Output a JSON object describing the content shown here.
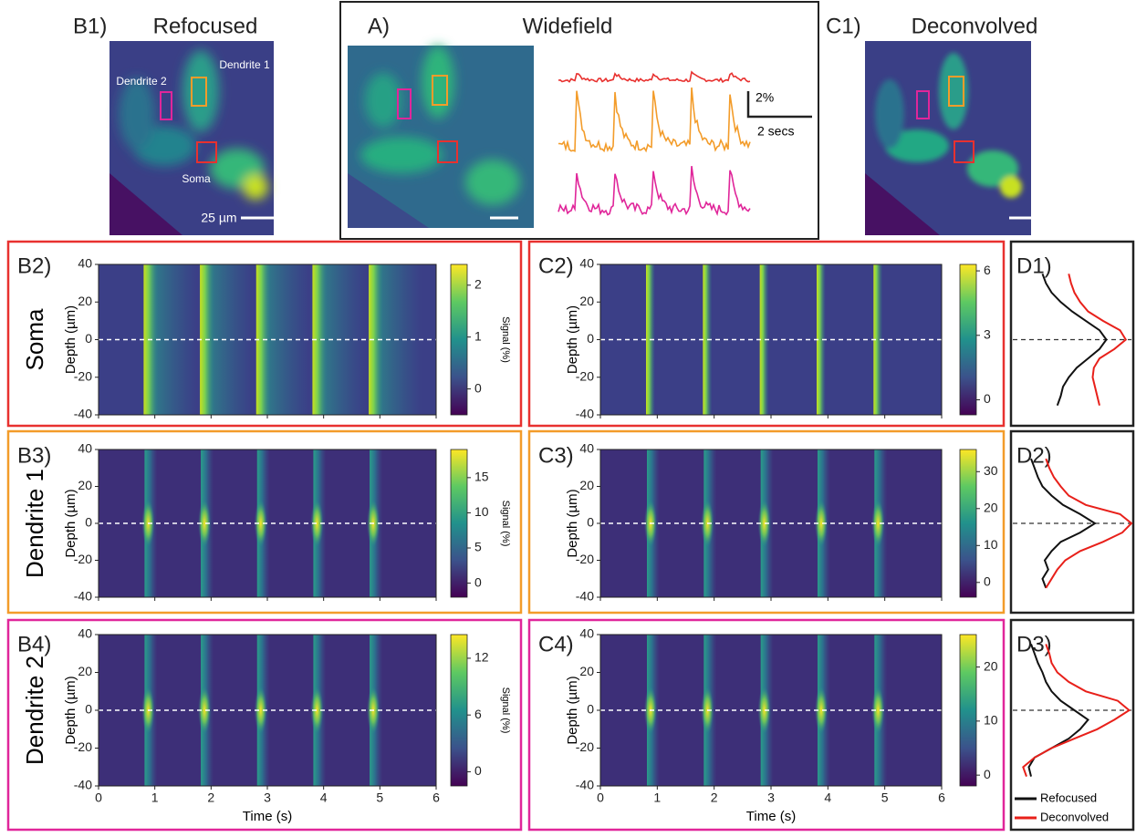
{
  "figure": {
    "b1": {
      "label": "B1)",
      "title": "Refocused",
      "annotations": [
        "Dendrite 1",
        "Dendrite 2",
        "Soma"
      ],
      "scale_bar": "25 µm"
    },
    "a": {
      "label": "A)",
      "title": "Widefield",
      "scale_y": "2%",
      "scale_x": "2 secs"
    },
    "c1": {
      "label": "C1)",
      "title": "Deconvolved"
    }
  },
  "chart_data": [
    {
      "type": "heatmap",
      "label": "B2)",
      "row_label": "Soma",
      "ylabel": "Depth (µm)",
      "ylim": [
        -40,
        40
      ],
      "yticks": [
        40,
        20,
        0,
        -20,
        -40
      ],
      "xlim": [
        0,
        6
      ],
      "xticks": [
        0,
        1,
        2,
        3,
        4,
        5,
        6
      ],
      "events": [
        0.85,
        1.85,
        2.85,
        3.85,
        4.85
      ],
      "clim": [
        -0.5,
        2.4
      ],
      "cticks": [
        0,
        1,
        2
      ],
      "clabel": "Signal (%)",
      "border": "#e8312f"
    },
    {
      "type": "heatmap",
      "label": "C2)",
      "ylabel": "Depth (µm)",
      "ylim": [
        -40,
        40
      ],
      "yticks": [
        40,
        20,
        0,
        -20,
        -40
      ],
      "xlim": [
        0,
        6
      ],
      "xticks": [
        0,
        1,
        2,
        3,
        4,
        5,
        6
      ],
      "events": [
        0.85,
        1.85,
        2.85,
        3.85,
        4.85
      ],
      "clim": [
        -0.7,
        6.3
      ],
      "cticks": [
        0,
        3,
        6
      ],
      "border": "#e8312f"
    },
    {
      "type": "profile",
      "label": "D1)",
      "ylim": [
        -40,
        40
      ],
      "xlim": [
        0,
        1
      ],
      "y": [
        -35,
        -30,
        -25,
        -20,
        -15,
        -10,
        -5,
        0,
        5,
        10,
        15,
        20,
        25,
        30,
        35
      ],
      "series": [
        {
          "name": "Refocused",
          "color": "#111111",
          "values": [
            0.35,
            0.38,
            0.4,
            0.45,
            0.52,
            0.62,
            0.72,
            0.78,
            0.72,
            0.6,
            0.48,
            0.38,
            0.3,
            0.25,
            0.22
          ]
        },
        {
          "name": "Deconvolved",
          "color": "#e8201a",
          "values": [
            0.72,
            0.7,
            0.68,
            0.66,
            0.67,
            0.72,
            0.85,
            0.95,
            0.9,
            0.75,
            0.62,
            0.55,
            0.5,
            0.47,
            0.45
          ]
        }
      ]
    },
    {
      "type": "heatmap",
      "label": "B3)",
      "row_label": "Dendrite 1",
      "ylabel": "Depth (µm)",
      "ylim": [
        -40,
        40
      ],
      "yticks": [
        40,
        20,
        0,
        -20,
        -40
      ],
      "xlim": [
        0,
        6
      ],
      "xticks": [
        0,
        1,
        2,
        3,
        4,
        5,
        6
      ],
      "events": [
        0.85,
        1.85,
        2.85,
        3.85,
        4.85
      ],
      "clim": [
        -2,
        19
      ],
      "cticks": [
        0,
        5,
        10,
        15
      ],
      "clabel": "Signal (%)",
      "border": "#f39c2a"
    },
    {
      "type": "heatmap",
      "label": "C3)",
      "ylabel": "Depth (µm)",
      "ylim": [
        -40,
        40
      ],
      "yticks": [
        40,
        20,
        0,
        -20,
        -40
      ],
      "xlim": [
        0,
        6
      ],
      "xticks": [
        0,
        1,
        2,
        3,
        4,
        5,
        6
      ],
      "events": [
        0.85,
        1.85,
        2.85,
        3.85,
        4.85
      ],
      "clim": [
        -4,
        36
      ],
      "cticks": [
        0,
        10,
        20,
        30
      ],
      "border": "#f39c2a"
    },
    {
      "type": "profile",
      "label": "D2)",
      "ylim": [
        -40,
        40
      ],
      "xlim": [
        0,
        1
      ],
      "y": [
        -35,
        -30,
        -25,
        -20,
        -15,
        -10,
        -5,
        0,
        5,
        10,
        15,
        20,
        25,
        30,
        35
      ],
      "series": [
        {
          "name": "Refocused",
          "color": "#111111",
          "values": [
            0.25,
            0.22,
            0.27,
            0.24,
            0.3,
            0.38,
            0.55,
            0.68,
            0.55,
            0.4,
            0.3,
            0.22,
            0.18,
            0.15,
            0.12
          ]
        },
        {
          "name": "Deconvolved",
          "color": "#e8201a",
          "values": [
            0.25,
            0.3,
            0.35,
            0.42,
            0.55,
            0.75,
            0.92,
            1.0,
            0.9,
            0.6,
            0.45,
            0.38,
            0.32,
            0.28,
            0.25
          ]
        }
      ]
    },
    {
      "type": "heatmap",
      "label": "B4)",
      "row_label": "Dendrite 2",
      "ylabel": "Depth (µm)",
      "xlabel": "Time (s)",
      "ylim": [
        -40,
        40
      ],
      "yticks": [
        40,
        20,
        0,
        -20,
        -40
      ],
      "xlim": [
        0,
        6
      ],
      "xticks": [
        0,
        1,
        2,
        3,
        4,
        5,
        6
      ],
      "events": [
        0.85,
        1.85,
        2.85,
        3.85,
        4.85
      ],
      "clim": [
        -1.5,
        14.5
      ],
      "cticks": [
        0,
        6,
        12
      ],
      "clabel": "Signal (%)",
      "border": "#e0269a"
    },
    {
      "type": "heatmap",
      "label": "C4)",
      "ylabel": "Depth (µm)",
      "xlabel": "Time (s)",
      "ylim": [
        -40,
        40
      ],
      "yticks": [
        40,
        20,
        0,
        -20,
        -40
      ],
      "xlim": [
        0,
        6
      ],
      "xticks": [
        0,
        1,
        2,
        3,
        4,
        5,
        6
      ],
      "events": [
        0.85,
        1.85,
        2.85,
        3.85,
        4.85
      ],
      "clim": [
        -2,
        26
      ],
      "cticks": [
        0,
        10,
        20
      ],
      "border": "#e0269a"
    },
    {
      "type": "profile",
      "label": "D3)",
      "ylim": [
        -40,
        40
      ],
      "xlim": [
        0,
        1
      ],
      "y": [
        -35,
        -30,
        -25,
        -20,
        -15,
        -10,
        -5,
        0,
        5,
        10,
        15,
        20,
        25,
        30,
        35
      ],
      "legend": true,
      "series": [
        {
          "name": "Refocused",
          "color": "#111111",
          "values": [
            0.12,
            0.1,
            0.15,
            0.3,
            0.45,
            0.55,
            0.62,
            0.5,
            0.38,
            0.3,
            0.25,
            0.22,
            0.18,
            0.15,
            0.12
          ]
        },
        {
          "name": "Deconvolved",
          "color": "#e8201a",
          "values": [
            0.08,
            0.05,
            0.15,
            0.3,
            0.5,
            0.7,
            0.85,
            0.98,
            0.88,
            0.6,
            0.45,
            0.35,
            0.3,
            0.28,
            0.25
          ]
        }
      ]
    }
  ]
}
